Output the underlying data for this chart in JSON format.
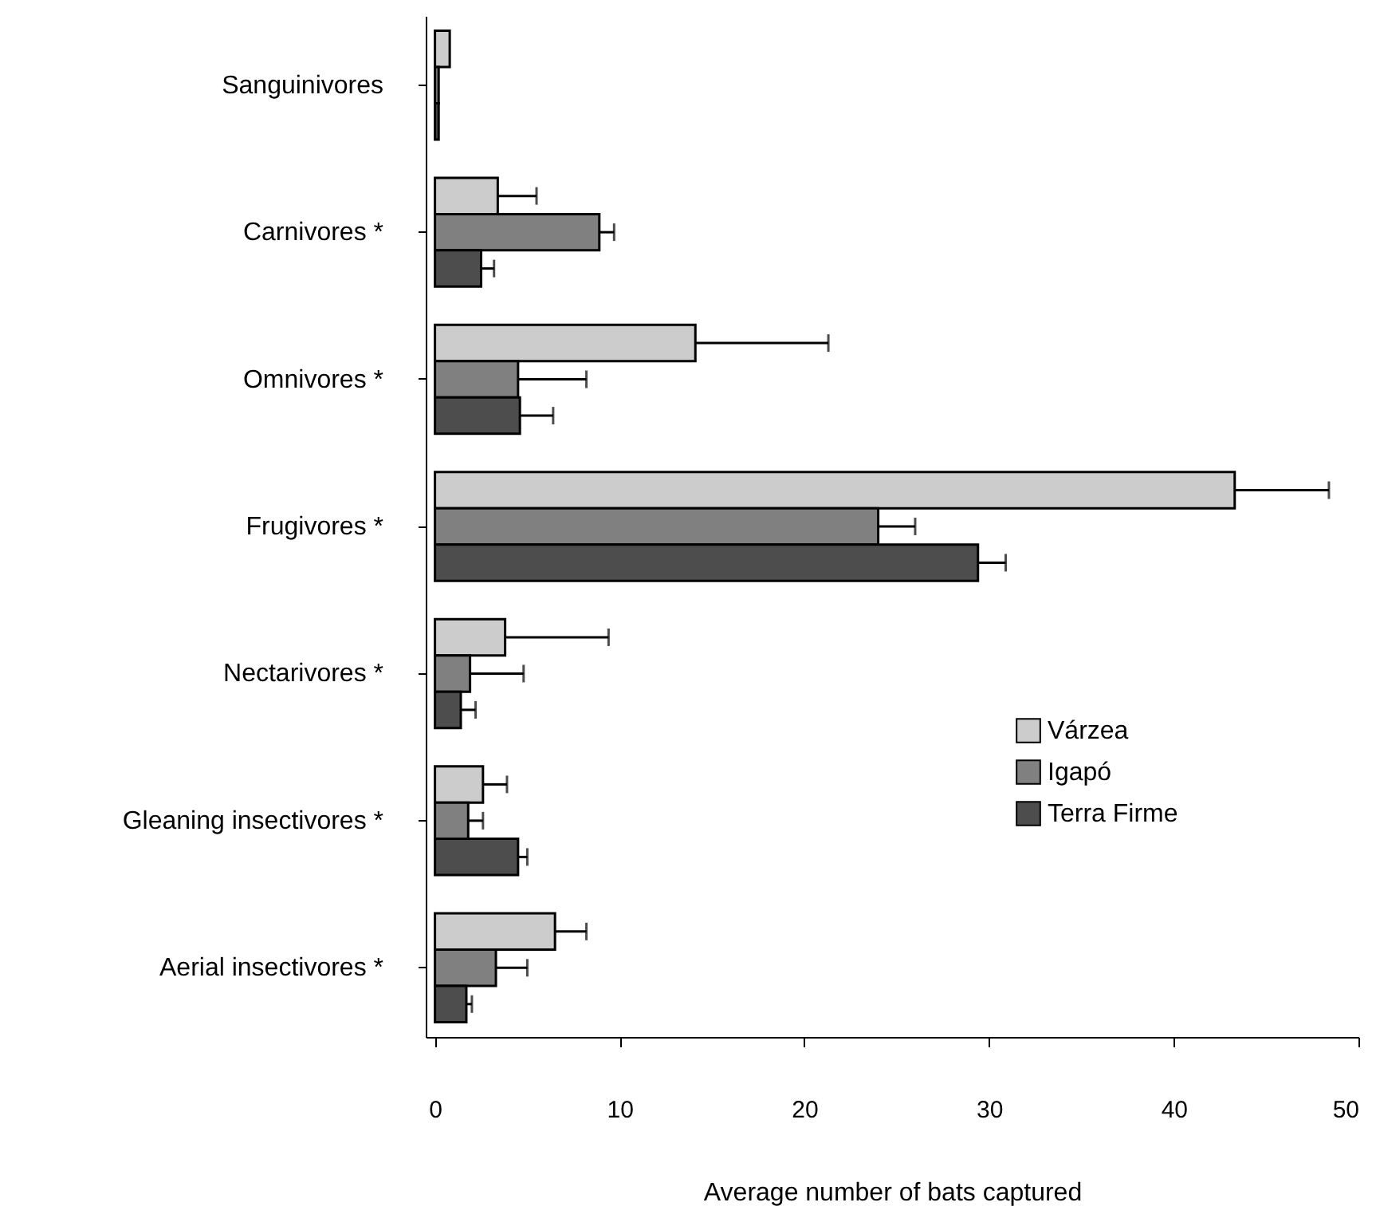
{
  "chart_data": {
    "type": "bar",
    "orientation": "horizontal",
    "xlabel": "Average number of bats captured",
    "categories": [
      "Sanguinivores",
      "Carnivores *",
      "Omnivores *",
      "Frugivores *",
      "Nectarivores *",
      "Gleaning insectivores *",
      "Aerial insectivores *"
    ],
    "series": [
      {
        "name": "Várzea",
        "color": "#cccccc",
        "values": [
          0.8,
          3.4,
          14.1,
          43.3,
          3.8,
          2.6,
          6.5
        ],
        "errors": [
          null,
          [
            3.4,
            5.5
          ],
          [
            14.1,
            21.3
          ],
          [
            43.3,
            48.4
          ],
          [
            3.8,
            9.4
          ],
          [
            2.6,
            3.9
          ],
          [
            6.5,
            8.2
          ]
        ]
      },
      {
        "name": "Igapó",
        "color": "#808080",
        "values": [
          0.2,
          8.9,
          4.5,
          24.0,
          1.9,
          1.8,
          3.3
        ],
        "errors": [
          null,
          [
            8.9,
            9.7
          ],
          [
            4.5,
            8.2
          ],
          [
            24.0,
            26.0
          ],
          [
            1.9,
            4.8
          ],
          [
            1.8,
            2.6
          ],
          [
            3.3,
            5.0
          ]
        ]
      },
      {
        "name": "Terra Firme",
        "color": "#4d4d4d",
        "values": [
          0.2,
          2.5,
          4.6,
          29.4,
          1.4,
          4.5,
          1.7
        ],
        "errors": [
          null,
          [
            2.5,
            3.2
          ],
          [
            4.6,
            6.4
          ],
          [
            29.4,
            30.9
          ],
          [
            1.4,
            2.2
          ],
          [
            4.5,
            5.0
          ],
          [
            1.7,
            2.0
          ]
        ]
      }
    ],
    "xlim": [
      -0.5,
      50
    ],
    "xticks": [
      0,
      10,
      20,
      30,
      40,
      50
    ],
    "grid": false,
    "legend": "bottom right"
  }
}
